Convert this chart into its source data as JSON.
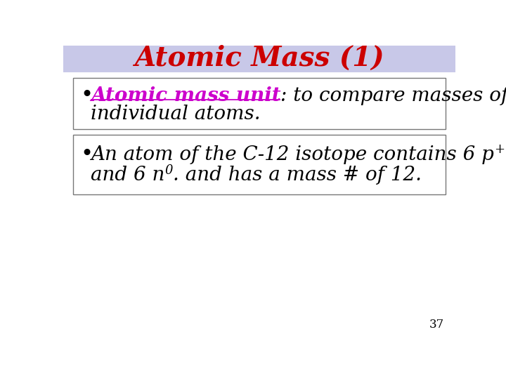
{
  "title": "Atomic Mass (1)",
  "title_color": "#cc0000",
  "title_bg_color": "#c8c8e8",
  "slide_bg_color": "#ffffff",
  "bullet1_underline_text": "Atomic mass unit",
  "bullet1_underline_color": "#cc00cc",
  "bullet1_rest": ": to compare masses of",
  "bullet1_line2": "individual atoms.",
  "bullet2_line1_pre": "An atom of the C-12 isotope contains 6 p",
  "bullet2_sup1": "+",
  "bullet2_line1_end": ".",
  "bullet2_line2_pre": "and 6 n",
  "bullet2_sup2": "0",
  "bullet2_line2_end": ". and has a mass # of 12.",
  "page_number": "37",
  "text_color": "#000000",
  "font_size_title": 28,
  "font_size_body": 20,
  "font_size_super": 13,
  "font_size_page": 12
}
